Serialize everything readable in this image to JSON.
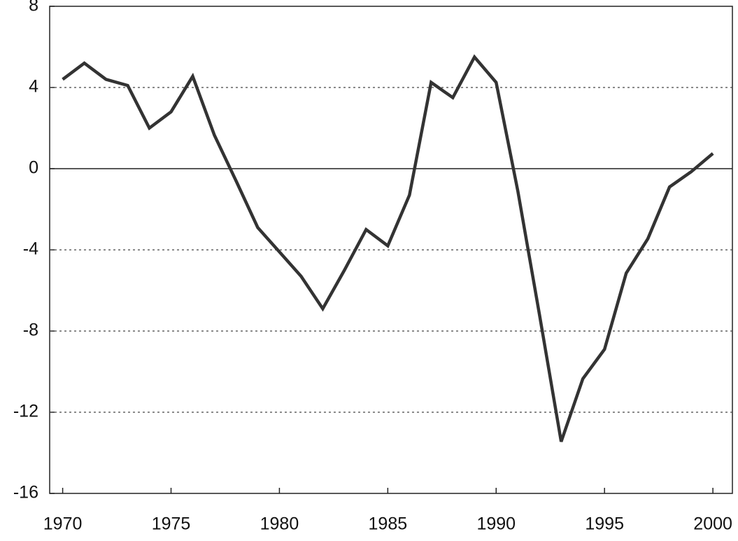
{
  "chart_data": {
    "type": "line",
    "x": [
      1970,
      1971,
      1972,
      1973,
      1974,
      1975,
      1976,
      1977,
      1978,
      1979,
      1980,
      1981,
      1982,
      1983,
      1984,
      1985,
      1986,
      1987,
      1988,
      1989,
      1990,
      1991,
      1992,
      1993,
      1994,
      1995,
      1996,
      1997,
      1998,
      1999,
      2000
    ],
    "values": [
      4.4,
      5.2,
      4.4,
      4.1,
      2.0,
      2.8,
      4.55,
      1.65,
      -0.6,
      -2.9,
      -4.1,
      -5.3,
      -6.9,
      -5.0,
      -3.0,
      -3.8,
      -1.3,
      4.25,
      3.5,
      5.5,
      4.25,
      -1.1,
      -7.2,
      -13.45,
      -10.35,
      -8.9,
      -5.15,
      -3.45,
      -0.9,
      -0.15,
      0.75
    ],
    "color": "#333333",
    "xlim": [
      1969.4,
      2000.9
    ],
    "xticks": [
      1970,
      1975,
      1980,
      1985,
      1990,
      1995,
      2000
    ],
    "ylim": [
      -16,
      8
    ],
    "yticks": [
      -16,
      -12,
      -8,
      -4,
      0,
      4,
      8
    ],
    "grid": true,
    "zero_line": true
  }
}
